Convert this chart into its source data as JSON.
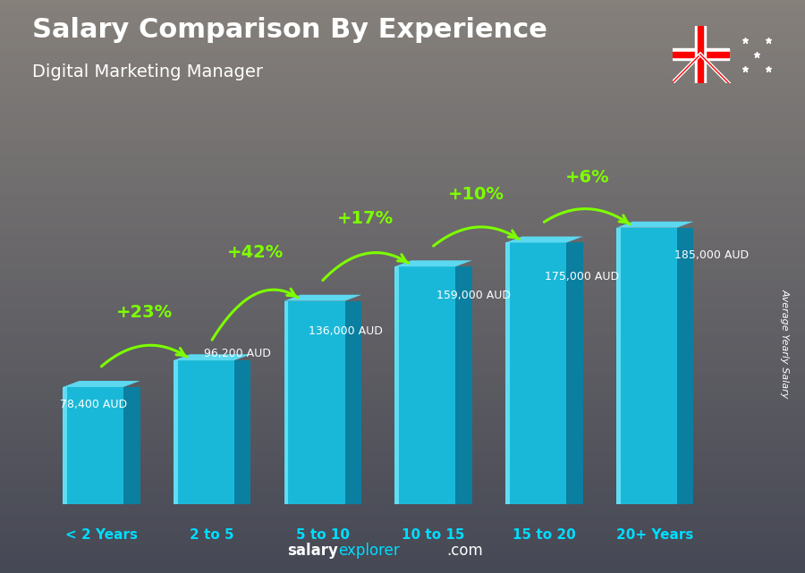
{
  "title": "Salary Comparison By Experience",
  "subtitle": "Digital Marketing Manager",
  "categories": [
    "< 2 Years",
    "2 to 5",
    "5 to 10",
    "10 to 15",
    "15 to 20",
    "20+ Years"
  ],
  "values": [
    78400,
    96200,
    136000,
    159000,
    175000,
    185000
  ],
  "labels": [
    "78,400 AUD",
    "96,200 AUD",
    "136,000 AUD",
    "159,000 AUD",
    "175,000 AUD",
    "185,000 AUD"
  ],
  "pct_changes": [
    "+23%",
    "+42%",
    "+17%",
    "+10%",
    "+6%"
  ],
  "bar_color_face": "#1ab8d8",
  "bar_color_side": "#0a7fa0",
  "bar_color_top": "#5cd8f0",
  "bar_color_highlight": "#7eeeff",
  "pct_color": "#7dff00",
  "arrow_color": "#7dff00",
  "xlabel_color": "#00ddff",
  "title_color": "#ffffff",
  "subtitle_color": "#ffffff",
  "label_color": "#dddddd",
  "ylabel_text": "Average Yearly Salary",
  "ylim": [
    0,
    230000
  ],
  "bg_top": "#5a6060",
  "bg_bottom": "#1a1a2a"
}
